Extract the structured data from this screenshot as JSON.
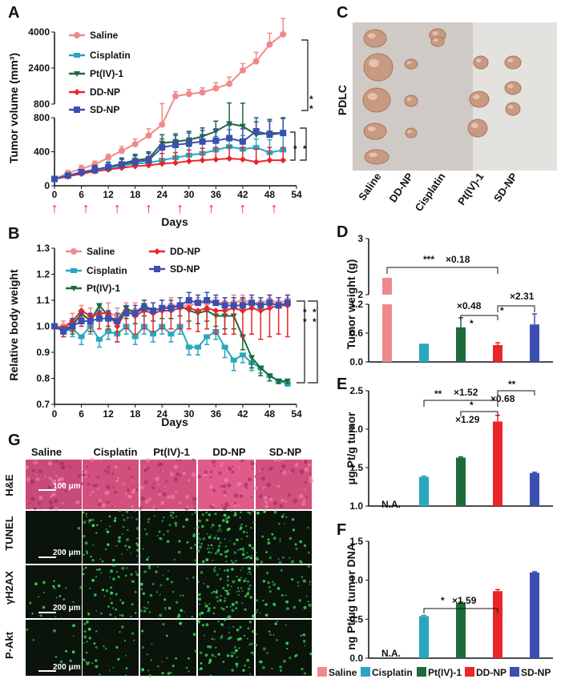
{
  "colors": {
    "saline": "#f08a8a",
    "cisplatin": "#2aa6be",
    "pt4": "#1e6a38",
    "ddnp": "#e8262a",
    "sdnp": "#3a4fb0"
  },
  "panelA": {
    "letter": "A",
    "ylabel": "Tumor volume (mm³)",
    "xlabel": "Days",
    "sig": [
      "*",
      "*",
      "*",
      "*"
    ],
    "arrow_glyph": "↑",
    "legend": [
      "Saline",
      "Cisplatin",
      "Pt(IV)-1",
      "DD-NP",
      "SD-NP"
    ]
  },
  "panelB": {
    "letter": "B",
    "ylabel": "Relative body weight",
    "xlabel": "Days",
    "sig": [
      "*",
      "*",
      "*",
      "*"
    ],
    "legend": [
      "Saline",
      "Cisplatin",
      "Pt(IV)-1",
      "DD-NP",
      "SD-NP"
    ]
  },
  "panelC": {
    "letter": "C",
    "side_label": "PDLC",
    "groups": [
      "Saline",
      "DD-NP",
      "Cisplatin",
      "Pt(IV)-1",
      "SD-NP"
    ]
  },
  "panelD": {
    "letter": "D",
    "annotations": [
      "***",
      "×0.18",
      "×0.48",
      "×2.31",
      "*",
      "*"
    ]
  },
  "panelE": {
    "letter": "E",
    "na_text": "N.A.",
    "annotations": [
      "**",
      "×1.52",
      "**",
      "×0.68",
      "*",
      "×1.29"
    ]
  },
  "panelF": {
    "letter": "F",
    "na_text": "N.A.",
    "annotations": [
      "*",
      "×1.59"
    ]
  },
  "panelG": {
    "letter": "G",
    "columns": [
      "Saline",
      "Cisplatin",
      "Pt(IV)-1",
      "DD-NP",
      "SD-NP"
    ],
    "rows": [
      "H&E",
      "TUNEL",
      "γH2AX",
      "P-Akt"
    ],
    "scalebars": [
      "100  μm",
      "200  μm",
      "200  μm",
      "200  μm"
    ]
  },
  "bottom_legend": [
    "Saline",
    "Cisplatin",
    "Pt(IV)-1",
    "DD-NP",
    "SD-NP"
  ],
  "chart_data": [
    {
      "id": "A",
      "type": "line",
      "title": "",
      "xlabel": "Days",
      "ylabel": "Tumor volume (mm³)",
      "xlim": [
        0,
        54
      ],
      "x_ticks": [
        0,
        6,
        12,
        18,
        24,
        30,
        36,
        42,
        48,
        54
      ],
      "y_ticks_lower": [
        0,
        400,
        800
      ],
      "y_ticks_upper": [
        800,
        2400,
        4000
      ],
      "ylim_lower": [
        0,
        800
      ],
      "ylim_upper": [
        800,
        4000
      ],
      "injection_days": [
        0,
        7,
        14,
        21,
        28,
        35,
        42,
        49
      ],
      "series": [
        {
          "name": "Saline",
          "key": "saline",
          "x": [
            0,
            3,
            6,
            9,
            12,
            15,
            18,
            21,
            24,
            27,
            30,
            33,
            36,
            39,
            42,
            45,
            48,
            51
          ],
          "y": [
            80,
            150,
            200,
            250,
            330,
            410,
            490,
            590,
            720,
            1150,
            1250,
            1320,
            1500,
            1700,
            2300,
            2700,
            3450,
            3900
          ],
          "err": [
            20,
            30,
            40,
            40,
            40,
            50,
            60,
            80,
            100,
            200,
            200,
            200,
            250,
            300,
            300,
            400,
            500,
            700
          ]
        },
        {
          "name": "Cisplatin",
          "key": "cisplatin",
          "x": [
            0,
            3,
            6,
            9,
            12,
            15,
            18,
            21,
            24,
            27,
            30,
            33,
            36,
            39,
            42,
            45,
            48,
            51
          ],
          "y": [
            80,
            120,
            150,
            170,
            200,
            230,
            260,
            270,
            300,
            330,
            360,
            380,
            420,
            460,
            430,
            450,
            390,
            420
          ],
          "err": [
            15,
            20,
            40,
            50,
            80,
            100,
            100,
            120,
            150,
            120,
            100,
            160,
            160,
            200,
            160,
            100,
            150,
            200
          ]
        },
        {
          "name": "Pt(IV)-1",
          "key": "pt4",
          "x": [
            0,
            3,
            6,
            9,
            12,
            15,
            18,
            21,
            24,
            27,
            30,
            33,
            36,
            39,
            42,
            45,
            48,
            51
          ],
          "y": [
            80,
            110,
            150,
            190,
            220,
            260,
            300,
            320,
            500,
            520,
            540,
            580,
            640,
            730,
            700,
            600,
            620,
            620
          ],
          "err": [
            15,
            20,
            30,
            50,
            50,
            60,
            70,
            80,
            100,
            90,
            100,
            100,
            120,
            120,
            140,
            150,
            160,
            180
          ]
        },
        {
          "name": "DD-NP",
          "key": "ddnp",
          "x": [
            0,
            3,
            6,
            9,
            12,
            15,
            18,
            21,
            24,
            27,
            30,
            33,
            36,
            39,
            42,
            45,
            48,
            51
          ],
          "y": [
            80,
            110,
            140,
            170,
            190,
            210,
            230,
            240,
            260,
            270,
            290,
            300,
            310,
            320,
            310,
            280,
            300,
            300
          ],
          "err": [
            15,
            20,
            30,
            40,
            50,
            60,
            80,
            100,
            120,
            120,
            130,
            140,
            140,
            140,
            140,
            150,
            150,
            150
          ]
        },
        {
          "name": "SD-NP",
          "key": "sdnp",
          "x": [
            0,
            3,
            6,
            9,
            12,
            15,
            18,
            21,
            24,
            27,
            30,
            33,
            36,
            39,
            42,
            45,
            48,
            51
          ],
          "y": [
            80,
            120,
            160,
            190,
            220,
            250,
            280,
            300,
            450,
            480,
            500,
            520,
            530,
            560,
            520,
            640,
            600,
            620
          ],
          "err": [
            15,
            20,
            30,
            40,
            50,
            60,
            70,
            80,
            100,
            110,
            120,
            130,
            140,
            150,
            150,
            160,
            160,
            170
          ]
        }
      ]
    },
    {
      "id": "B",
      "type": "line",
      "title": "",
      "xlabel": "Days",
      "ylabel": "Relative body weight",
      "xlim": [
        0,
        54
      ],
      "ylim": [
        0.7,
        1.3
      ],
      "x_ticks": [
        0,
        6,
        12,
        18,
        24,
        30,
        36,
        42,
        48,
        54
      ],
      "y_ticks": [
        0.7,
        0.8,
        0.9,
        1.0,
        1.1,
        1.2,
        1.3
      ],
      "series": [
        {
          "name": "Saline",
          "key": "saline",
          "x": [
            0,
            2,
            4,
            6,
            8,
            10,
            12,
            14,
            16,
            18,
            20,
            22,
            24,
            26,
            28,
            30,
            32,
            34,
            36,
            38,
            40,
            42,
            44,
            46,
            48,
            50,
            52
          ],
          "y": [
            1.0,
            1.0,
            1.02,
            1.04,
            1.03,
            1.05,
            1.05,
            1.04,
            1.06,
            1.06,
            1.07,
            1.06,
            1.07,
            1.08,
            1.08,
            1.08,
            1.09,
            1.09,
            1.09,
            1.09,
            1.09,
            1.1,
            1.09,
            1.09,
            1.1,
            1.09,
            1.1
          ],
          "err": [
            0.01,
            0.02,
            0.03,
            0.04,
            0.04,
            0.03,
            0.04,
            0.03,
            0.03,
            0.03,
            0.03,
            0.03,
            0.03,
            0.03,
            0.03,
            0.03,
            0.02,
            0.02,
            0.02,
            0.02,
            0.03,
            0.02,
            0.02,
            0.02,
            0.02,
            0.02,
            0.02
          ]
        },
        {
          "name": "Cisplatin",
          "key": "cisplatin",
          "x": [
            0,
            2,
            4,
            6,
            8,
            10,
            12,
            14,
            16,
            18,
            20,
            22,
            24,
            26,
            28,
            30,
            32,
            34,
            36,
            38,
            40,
            42,
            44,
            46,
            48,
            50,
            52
          ],
          "y": [
            1.0,
            0.98,
            0.99,
            0.96,
            1.0,
            0.95,
            0.98,
            0.97,
            1.0,
            0.96,
            1.0,
            0.97,
            1.0,
            0.97,
            1.0,
            0.92,
            0.92,
            0.96,
            0.98,
            0.92,
            0.87,
            0.89,
            0.86,
            0.84,
            0.81,
            0.79,
            0.78
          ],
          "err": [
            0.01,
            0.02,
            0.03,
            0.03,
            0.03,
            0.03,
            0.03,
            0.03,
            0.03,
            0.03,
            0.03,
            0.03,
            0.03,
            0.03,
            0.03,
            0.03,
            0.03,
            0.03,
            0.03,
            0.04,
            0.04,
            0.03,
            0.03,
            0.02,
            0.02,
            0.01,
            0.01
          ]
        },
        {
          "name": "Pt(IV)-1",
          "key": "pt4",
          "x": [
            0,
            2,
            4,
            6,
            8,
            10,
            12,
            14,
            16,
            18,
            20,
            22,
            24,
            26,
            28,
            30,
            32,
            34,
            36,
            38,
            40,
            42,
            44,
            46,
            48,
            50,
            52
          ],
          "y": [
            1.0,
            0.99,
            1.0,
            1.05,
            1.02,
            1.08,
            1.04,
            1.02,
            1.07,
            1.05,
            1.08,
            1.06,
            1.07,
            1.07,
            1.08,
            1.06,
            1.05,
            1.06,
            1.04,
            1.04,
            1.04,
            0.96,
            0.88,
            0.84,
            0.81,
            0.79,
            0.79
          ],
          "err": [
            0.01,
            0.02,
            0.03,
            0.04,
            0.04,
            0.04,
            0.04,
            0.04,
            0.04,
            0.04,
            0.04,
            0.04,
            0.04,
            0.04,
            0.04,
            0.04,
            0.04,
            0.04,
            0.04,
            0.05,
            0.05,
            0.05,
            0.04,
            0.03,
            0.02,
            0.01,
            0.01
          ]
        },
        {
          "name": "DD-NP",
          "key": "ddnp",
          "x": [
            0,
            2,
            4,
            6,
            8,
            10,
            12,
            14,
            16,
            18,
            20,
            22,
            24,
            26,
            28,
            30,
            32,
            34,
            36,
            38,
            40,
            42,
            44,
            46,
            48,
            50,
            52
          ],
          "y": [
            1.0,
            0.99,
            1.02,
            1.06,
            1.04,
            1.05,
            1.05,
            1.0,
            1.06,
            1.04,
            1.06,
            1.05,
            1.06,
            1.06,
            1.07,
            1.07,
            1.06,
            1.07,
            1.06,
            1.06,
            1.07,
            1.06,
            1.07,
            1.06,
            1.07,
            1.08,
            1.08
          ],
          "err": [
            0.01,
            0.03,
            0.04,
            0.06,
            0.06,
            0.06,
            0.06,
            0.06,
            0.07,
            0.07,
            0.07,
            0.07,
            0.07,
            0.07,
            0.08,
            0.08,
            0.08,
            0.08,
            0.09,
            0.09,
            0.1,
            0.1,
            0.1,
            0.11,
            0.11,
            0.11,
            0.12
          ]
        },
        {
          "name": "SD-NP",
          "key": "sdnp",
          "x": [
            0,
            2,
            4,
            6,
            8,
            10,
            12,
            14,
            16,
            18,
            20,
            22,
            24,
            26,
            28,
            30,
            32,
            34,
            36,
            38,
            40,
            42,
            44,
            46,
            48,
            50,
            52
          ],
          "y": [
            1.0,
            0.98,
            1.0,
            1.02,
            1.02,
            1.03,
            1.03,
            1.02,
            1.05,
            1.05,
            1.07,
            1.06,
            1.07,
            1.07,
            1.08,
            1.1,
            1.09,
            1.1,
            1.09,
            1.08,
            1.08,
            1.08,
            1.09,
            1.08,
            1.09,
            1.08,
            1.09
          ],
          "err": [
            0.01,
            0.02,
            0.03,
            0.03,
            0.03,
            0.03,
            0.03,
            0.03,
            0.03,
            0.03,
            0.03,
            0.03,
            0.03,
            0.03,
            0.03,
            0.03,
            0.03,
            0.03,
            0.03,
            0.03,
            0.03,
            0.03,
            0.03,
            0.03,
            0.03,
            0.03,
            0.03
          ]
        }
      ]
    },
    {
      "id": "D",
      "type": "bar",
      "title": "",
      "xlabel": "",
      "ylabel": "Tumor weight (g)",
      "categories": [
        "Saline",
        "Cisplatin",
        "Pt(IV)-1",
        "DD-NP",
        "SD-NP"
      ],
      "values": [
        2.3,
        0.38,
        0.72,
        0.35,
        0.78
      ],
      "errors": [
        0.0,
        0.0,
        0.2,
        0.05,
        0.22
      ],
      "broken_axis": true,
      "y_ticks_lower": [
        0,
        0.6,
        1.2
      ],
      "y_ticks_upper": [
        2,
        3
      ],
      "ylim_lower": [
        0,
        1.2
      ],
      "ylim_upper": [
        2,
        3
      ]
    },
    {
      "id": "E",
      "type": "bar",
      "title": "",
      "xlabel": "",
      "ylabel": "μg Pt/g tumor",
      "categories": [
        "Saline",
        "Cisplatin",
        "Pt(IV)-1",
        "DD-NP",
        "SD-NP"
      ],
      "values": [
        null,
        1.38,
        1.63,
        2.1,
        1.43
      ],
      "errors": [
        0,
        0.01,
        0.01,
        0.08,
        0.01
      ],
      "ylim": [
        1.0,
        2.5
      ],
      "y_ticks": [
        1.0,
        1.5,
        2.0,
        2.5
      ]
    },
    {
      "id": "F",
      "type": "bar",
      "title": "",
      "xlabel": "",
      "ylabel": "ng Pt/μg tumor DNA",
      "categories": [
        "Saline",
        "Cisplatin",
        "Pt(IV)-1",
        "DD-NP",
        "SD-NP"
      ],
      "values": [
        null,
        0.54,
        0.71,
        0.86,
        1.1
      ],
      "errors": [
        0,
        0.01,
        0.01,
        0.02,
        0.01
      ],
      "ylim": [
        0.0,
        1.5
      ],
      "y_ticks": [
        0.0,
        0.5,
        1.0,
        1.5
      ]
    }
  ]
}
